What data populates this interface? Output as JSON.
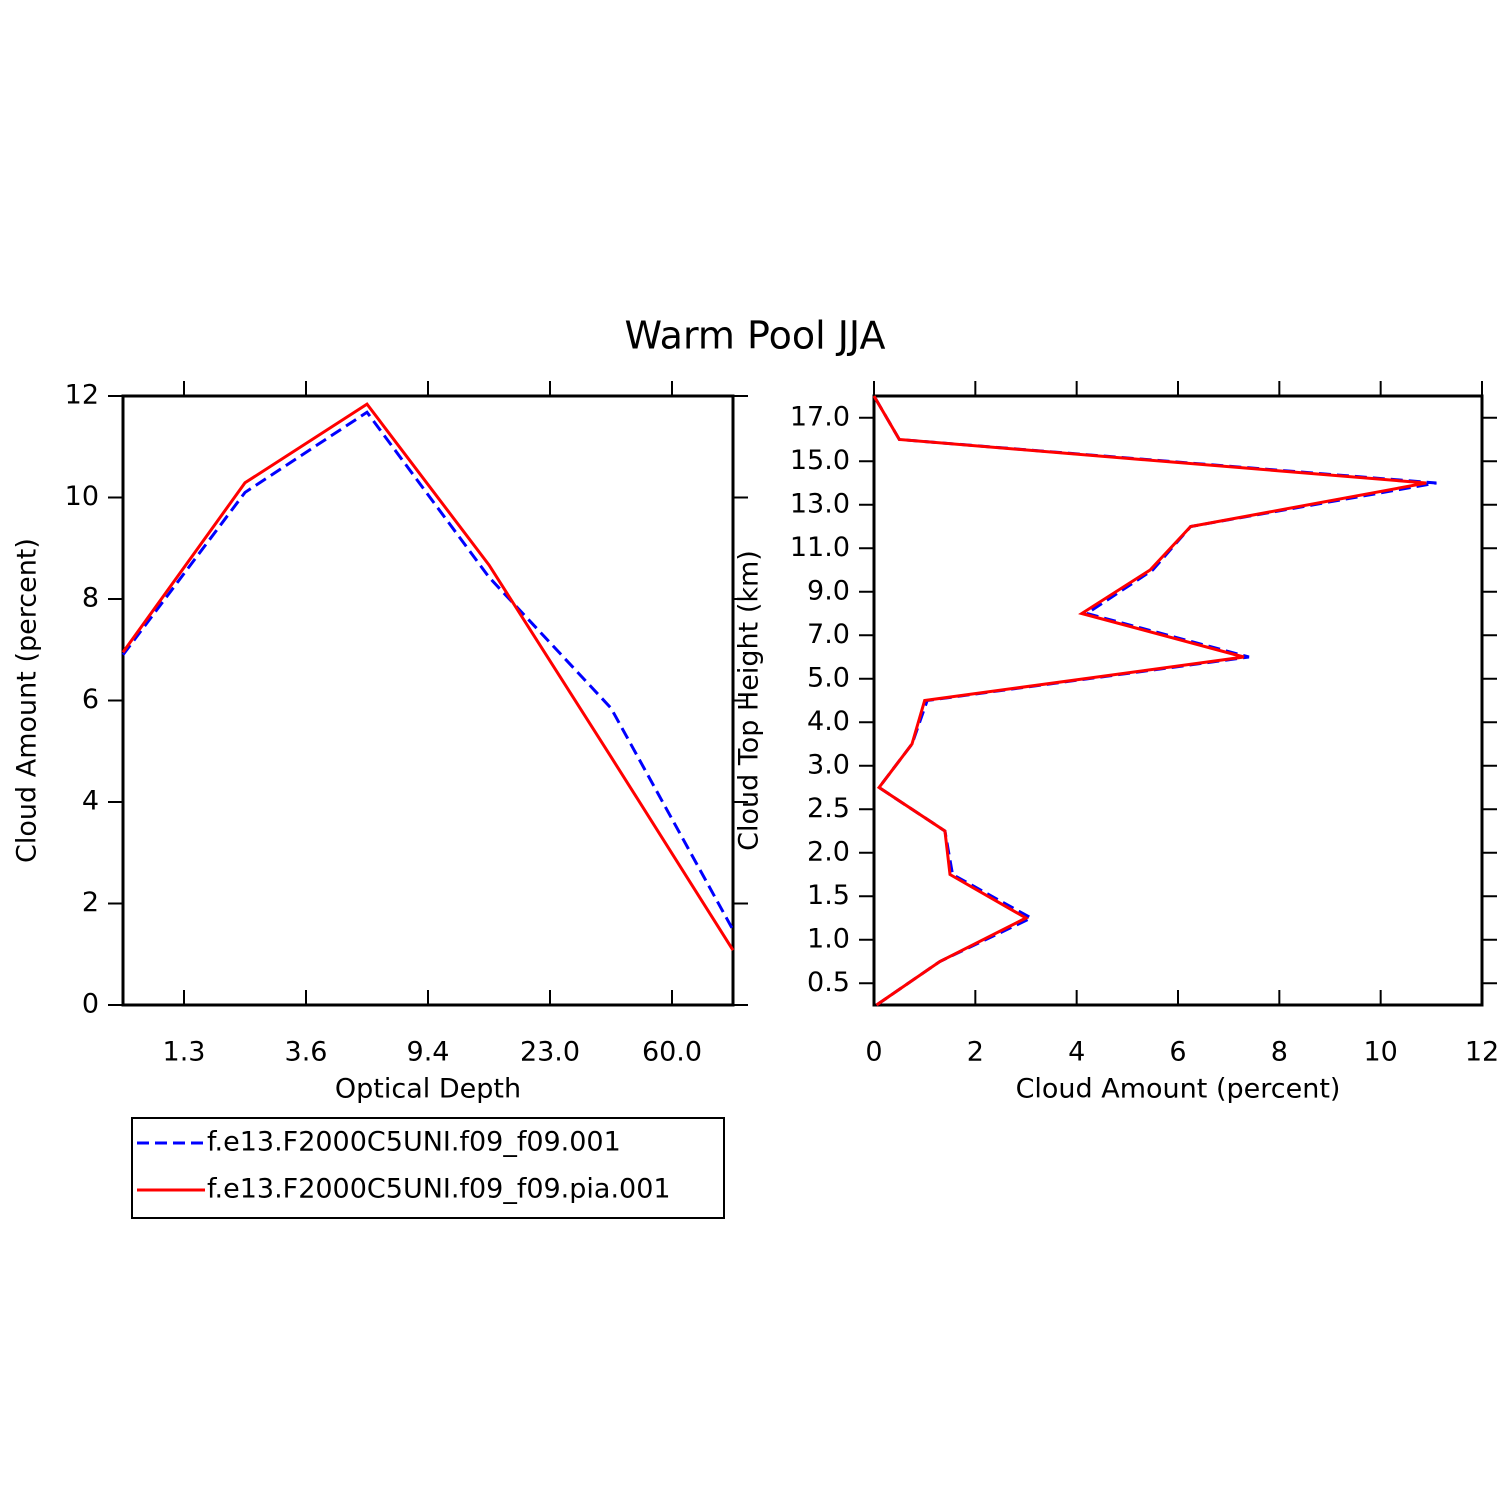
{
  "title": "Warm Pool JJA",
  "chart_data": [
    {
      "type": "line",
      "xlabel": "Optical Depth",
      "ylabel": "Cloud Amount (percent)",
      "x": [
        0,
        1,
        2,
        3,
        4,
        5
      ],
      "xlim": [
        0,
        5
      ],
      "xticks": [
        {
          "value": 0.5,
          "label": "1.3"
        },
        {
          "value": 1.5,
          "label": "3.6"
        },
        {
          "value": 2.5,
          "label": "9.4"
        },
        {
          "value": 3.5,
          "label": "23.0"
        },
        {
          "value": 4.5,
          "label": "60.0"
        }
      ],
      "ylim": [
        0,
        12
      ],
      "yticks": [
        0,
        2,
        4,
        6,
        8,
        10,
        12
      ],
      "series": [
        {
          "name": "f.e13.F2000C5UNI.f09_f09.001",
          "color": "#0000ff",
          "dashed": true,
          "values": [
            6.9,
            10.1,
            11.68,
            8.43,
            5.85,
            1.48
          ]
        },
        {
          "name": "f.e13.F2000C5UNI.f09_f09.pia.001",
          "color": "#ff0000",
          "dashed": false,
          "values": [
            6.95,
            10.29,
            11.84,
            8.67,
            4.89,
            1.08
          ]
        }
      ]
    },
    {
      "type": "line",
      "xlabel": "Cloud Amount (percent)",
      "ylabel": "Cloud Top Height (km)",
      "y": [
        0,
        1,
        2,
        3,
        4,
        5,
        6,
        7,
        8,
        9,
        10,
        11,
        12,
        13,
        14
      ],
      "xlim": [
        0,
        12
      ],
      "xticks": [
        0,
        2,
        4,
        6,
        8,
        10,
        12
      ],
      "ylim": [
        0,
        14
      ],
      "yticks": [
        {
          "value": 0.5,
          "label": "0.5"
        },
        {
          "value": 1.5,
          "label": "1.0"
        },
        {
          "value": 2.5,
          "label": "1.5"
        },
        {
          "value": 3.5,
          "label": "2.0"
        },
        {
          "value": 4.5,
          "label": "2.5"
        },
        {
          "value": 5.5,
          "label": "3.0"
        },
        {
          "value": 6.5,
          "label": "4.0"
        },
        {
          "value": 7.5,
          "label": "5.0"
        },
        {
          "value": 8.5,
          "label": "7.0"
        },
        {
          "value": 9.5,
          "label": "9.0"
        },
        {
          "value": 10.5,
          "label": "11.0"
        },
        {
          "value": 11.5,
          "label": "13.0"
        },
        {
          "value": 12.5,
          "label": "15.0"
        },
        {
          "value": 13.5,
          "label": "17.0"
        }
      ],
      "series": [
        {
          "name": "f.e13.F2000C5UNI.f09_f09.001",
          "color": "#0000ff",
          "dashed": true,
          "values": [
            0.05,
            1.3,
            3.1,
            1.55,
            1.4,
            0.1,
            0.75,
            1.05,
            7.4,
            4.2,
            5.5,
            6.25,
            11.1,
            0.5,
            0.0
          ]
        },
        {
          "name": "f.e13.F2000C5UNI.f09_f09.pia.001",
          "color": "#ff0000",
          "dashed": false,
          "values": [
            0.05,
            1.3,
            3.0,
            1.5,
            1.4,
            0.1,
            0.75,
            1.0,
            7.3,
            4.1,
            5.45,
            6.25,
            10.9,
            0.5,
            0.0
          ]
        }
      ]
    }
  ]
}
